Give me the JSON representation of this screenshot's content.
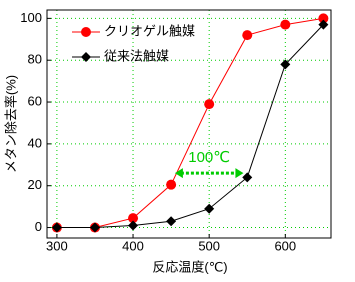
{
  "chart_data": {
    "type": "line",
    "x_label": "反応温度(℃)",
    "y_label": "メタン除去率(%)",
    "x": [
      300,
      350,
      400,
      450,
      500,
      550,
      600,
      650
    ],
    "series": [
      {
        "name": "クリオゲル触媒",
        "color": "#ff0000",
        "marker": "circle",
        "values": [
          0,
          0,
          4.5,
          20.5,
          59,
          92,
          97,
          100
        ]
      },
      {
        "name": "従来法触媒",
        "color": "#000000",
        "marker": "diamond",
        "values": [
          0,
          0,
          1,
          3,
          9,
          24,
          78,
          97
        ]
      }
    ],
    "xlim": [
      287,
      660
    ],
    "ylim": [
      -5,
      104
    ],
    "xticks": [
      300,
      400,
      500,
      600
    ],
    "yticks": [
      0,
      20,
      40,
      60,
      80,
      100
    ],
    "grid": true,
    "grid_color": "#00cc00",
    "legend": "upper left",
    "annotations": [
      {
        "text": "100℃",
        "color": "#00cc00",
        "x": [
          455,
          545
        ],
        "y": 26
      }
    ]
  }
}
